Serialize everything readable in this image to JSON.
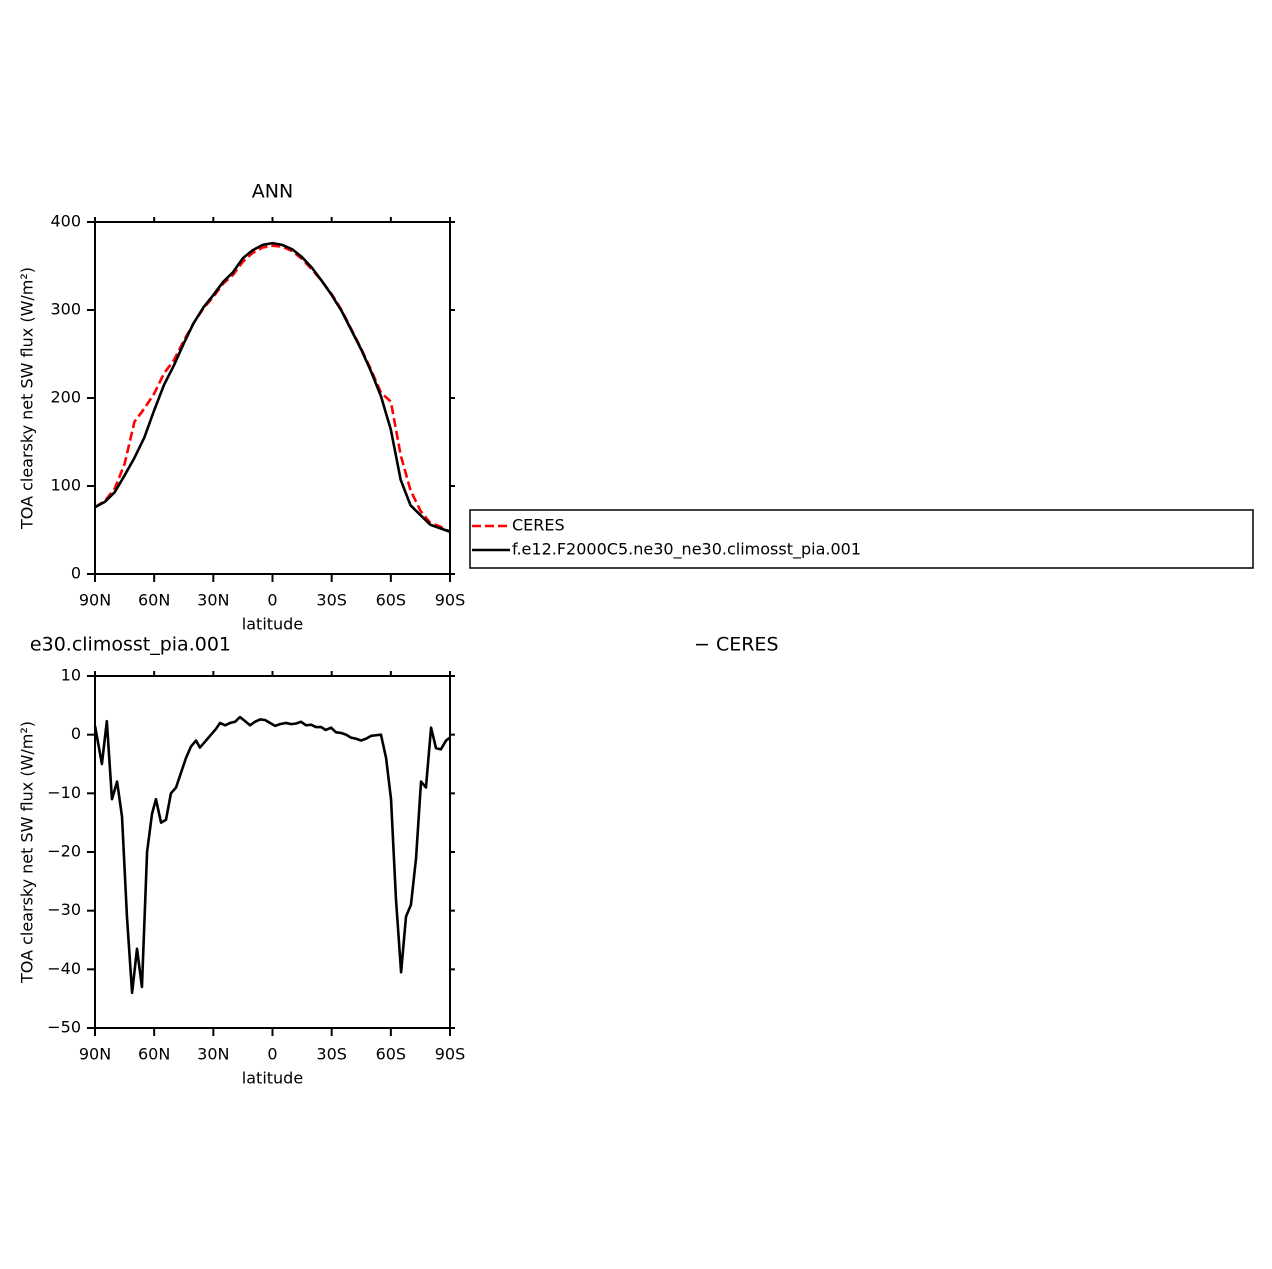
{
  "chart_data": [
    {
      "type": "line",
      "title": "ANN",
      "xlabel": "latitude",
      "ylabel": "TOA clearsky net SW flux (W/m²)",
      "x": [
        90,
        85,
        80,
        75,
        70,
        65,
        60,
        55,
        50,
        45,
        40,
        35,
        30,
        25,
        20,
        15,
        10,
        5,
        0,
        -5,
        -10,
        -15,
        -20,
        -25,
        -30,
        -35,
        -40,
        -45,
        -50,
        -55,
        -60,
        -65,
        -70,
        -75,
        -80,
        -85,
        -90
      ],
      "series": [
        {
          "name": "CERES",
          "color": "#ff0000",
          "line_style": "dashed",
          "values": [
            76,
            83,
            97,
            125,
            173,
            188,
            205,
            228,
            243,
            265,
            285,
            302,
            315,
            330,
            340,
            355,
            365,
            371,
            373,
            372,
            367,
            358,
            346,
            333,
            318,
            300,
            278,
            256,
            232,
            206,
            196,
            135,
            95,
            72,
            58,
            54,
            48
          ]
        },
        {
          "name": "f.e12.F2000C5.ne30_ne30.climosst_pia.001",
          "color": "#000000",
          "line_style": "solid",
          "values": [
            76,
            82,
            93,
            112,
            132,
            155,
            186,
            215,
            237,
            262,
            285,
            303,
            317,
            332,
            343,
            359,
            368,
            374,
            376,
            374,
            369,
            360,
            348,
            333,
            317,
            299,
            277,
            255,
            230,
            202,
            164,
            107,
            78,
            67,
            56,
            52,
            48
          ]
        }
      ],
      "xlim": [
        90,
        -90
      ],
      "xticks": [
        {
          "value": 90,
          "label": "90N"
        },
        {
          "value": 60,
          "label": "60N"
        },
        {
          "value": 30,
          "label": "30N"
        },
        0,
        {
          "value": -30,
          "label": "30S"
        },
        {
          "value": -60,
          "label": "60S"
        },
        {
          "value": -90,
          "label": "90S"
        }
      ],
      "ylim": [
        0,
        400
      ],
      "yticks": [
        0,
        100,
        200,
        300,
        400
      ],
      "legend": "right"
    },
    {
      "type": "line",
      "title": "e30.climosst_pia.001",
      "subtitle": "−  CERES",
      "xlabel": "latitude",
      "ylabel": "TOA clearsky net SW flux (W/m²)",
      "x": [
        90,
        86.5,
        84,
        81.4,
        78.8,
        76.3,
        73.8,
        71.2,
        68.7,
        66.2,
        63.6,
        61.1,
        59.1,
        56.5,
        54,
        51.5,
        48.9,
        46.4,
        43.9,
        41.3,
        38.8,
        36.8,
        33.7,
        31.2,
        28.6,
        26.6,
        24,
        21.5,
        19,
        16.5,
        13.9,
        11.4,
        8.9,
        6.3,
        3.8,
        1.3,
        -1.3,
        -3.8,
        -6.9,
        -9.4,
        -12,
        -14.5,
        -17,
        -19.6,
        -22,
        -24.6,
        -27,
        -29.7,
        -32.2,
        -34.7,
        -37.3,
        -39.8,
        -42.4,
        -44.9,
        -47.4,
        -50,
        -52.5,
        -55,
        -57.6,
        -60.1,
        -62.6,
        -65.2,
        -67.7,
        -70.2,
        -72.8,
        -75.3,
        -77.8,
        -80.4,
        -82.9,
        -85.4,
        -88,
        -90
      ],
      "series": [
        {
          "color": "#000000",
          "line_style": "solid",
          "values": [
            1.5,
            -5,
            2.3,
            -11,
            -8,
            -14,
            -31,
            -44,
            -36.5,
            -43,
            -20,
            -13.5,
            -11,
            -15,
            -14.5,
            -10,
            -9,
            -6.5,
            -4,
            -2,
            -1,
            -2.2,
            -1,
            0,
            1,
            2,
            1.6,
            2,
            2.2,
            3,
            2.3,
            1.6,
            2.2,
            2.6,
            2.5,
            2,
            1.5,
            1.8,
            2,
            1.8,
            1.9,
            2.2,
            1.6,
            1.7,
            1.3,
            1.3,
            0.8,
            1.2,
            0.4,
            0.3,
            0,
            -0.5,
            -0.7,
            -1,
            -0.7,
            -0.2,
            -0.1,
            0,
            -4,
            -11,
            -28,
            -40.5,
            -31,
            -29,
            -21,
            -8,
            -9,
            1.2,
            -2.3,
            -2.5,
            -1,
            -0.5
          ]
        }
      ],
      "xlim": [
        90,
        -90
      ],
      "xticks": [
        {
          "value": 90,
          "label": "90N"
        },
        {
          "value": 60,
          "label": "60N"
        },
        {
          "value": 30,
          "label": "30N"
        },
        0,
        {
          "value": -30,
          "label": "30S"
        },
        {
          "value": -60,
          "label": "60S"
        },
        {
          "value": -90,
          "label": "90S"
        }
      ],
      "ylim": [
        -50,
        10
      ],
      "yticks": [
        {
          "value": -50,
          "label": "−50"
        },
        {
          "value": -40,
          "label": "−40"
        },
        {
          "value": -30,
          "label": "−30"
        },
        {
          "value": -20,
          "label": "−20"
        },
        {
          "value": -10,
          "label": "−10"
        },
        0,
        10
      ]
    }
  ]
}
